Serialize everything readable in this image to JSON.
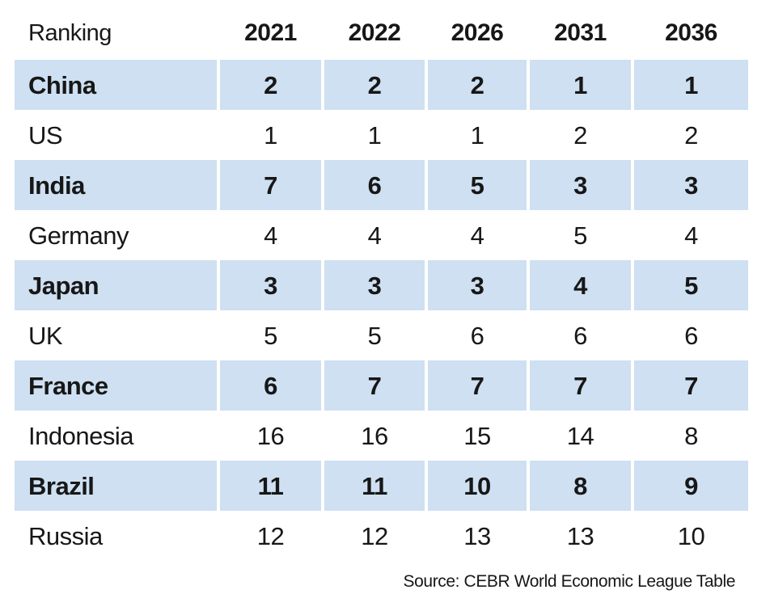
{
  "chart_data": {
    "type": "table",
    "title": "Ranking",
    "columns": [
      "Ranking",
      "2021",
      "2022",
      "2026",
      "2031",
      "2036"
    ],
    "rows": [
      {
        "label": "China",
        "values": [
          2,
          2,
          2,
          1,
          1
        ]
      },
      {
        "label": "US",
        "values": [
          1,
          1,
          1,
          2,
          2
        ]
      },
      {
        "label": "India",
        "values": [
          7,
          6,
          5,
          3,
          3
        ]
      },
      {
        "label": "Germany",
        "values": [
          4,
          4,
          4,
          5,
          4
        ]
      },
      {
        "label": "Japan",
        "values": [
          3,
          3,
          3,
          4,
          5
        ]
      },
      {
        "label": "UK",
        "values": [
          5,
          5,
          6,
          6,
          6
        ]
      },
      {
        "label": "France",
        "values": [
          6,
          7,
          7,
          7,
          7
        ]
      },
      {
        "label": "Indonesia",
        "values": [
          16,
          16,
          15,
          14,
          8
        ]
      },
      {
        "label": "Brazil",
        "values": [
          11,
          11,
          10,
          8,
          9
        ]
      },
      {
        "label": "Russia",
        "values": [
          12,
          12,
          13,
          13,
          10
        ]
      }
    ],
    "source": "Source: CEBR World Economic League Table",
    "layout": {
      "shaded_row_pattern": "alternating-starting-first",
      "legend": "none",
      "grid": "off"
    }
  },
  "colors": {
    "row_shade": "#cee0f1",
    "text": "#171717",
    "background": "#ffffff"
  }
}
